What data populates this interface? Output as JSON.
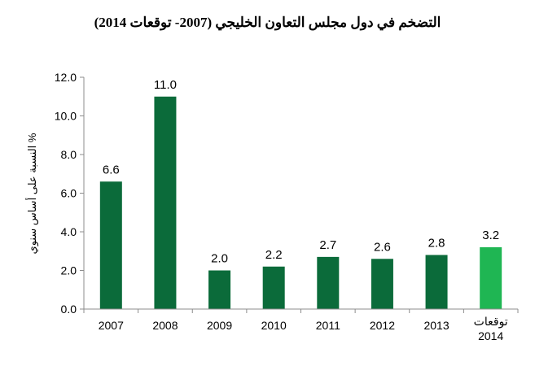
{
  "chart_data": {
    "type": "bar",
    "title": "التضخم في دول مجلس التعاون الخليجي (2007- توقعات 2014)",
    "xlabel": "",
    "ylabel": "% النسبة على أساس سنوي",
    "categories": [
      "2007",
      "2008",
      "2009",
      "2010",
      "2011",
      "2012",
      "2013",
      "توقعات 2014"
    ],
    "values": [
      6.6,
      11.0,
      2.0,
      2.2,
      2.7,
      2.6,
      2.8,
      3.2
    ],
    "data_labels": [
      "6.6",
      "11.0",
      "2.0",
      "2.2",
      "2.7",
      "2.6",
      "2.8",
      "3.2"
    ],
    "ylim": [
      0,
      12
    ],
    "yticks": [
      "0.0",
      "2.0",
      "4.0",
      "6.0",
      "8.0",
      "10.0",
      "12.0"
    ],
    "grid": false,
    "legend": "none",
    "colors": {
      "actual": "#0b6b3a",
      "forecast": "#1fb653",
      "axis": "#8c8c8c"
    },
    "forecast_index": 7
  }
}
